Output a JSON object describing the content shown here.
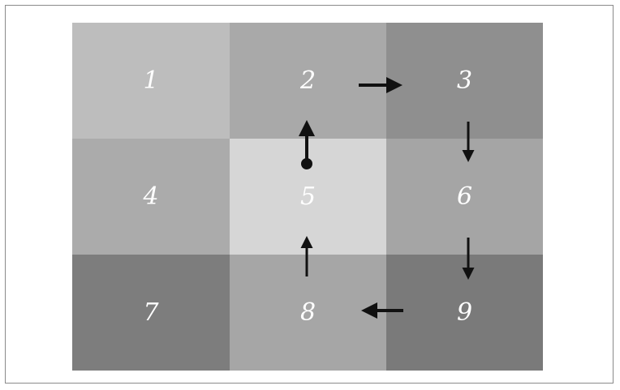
{
  "cells": [
    {
      "label": "1",
      "color": "#bdbdbd"
    },
    {
      "label": "2",
      "color": "#a9a9a9"
    },
    {
      "label": "3",
      "color": "#8f8f8f"
    },
    {
      "label": "4",
      "color": "#ababab"
    },
    {
      "label": "5",
      "color": "#d6d6d6"
    },
    {
      "label": "6",
      "color": "#a5a5a5"
    },
    {
      "label": "7",
      "color": "#7d7d7d"
    },
    {
      "label": "8",
      "color": "#a6a6a6"
    },
    {
      "label": "9",
      "color": "#7a7a7a"
    }
  ],
  "colors": {
    "frame_border": "#8a8a8a",
    "arrow": "#111111",
    "label": "#ffffff"
  },
  "arrows": [
    {
      "from": "5",
      "to": "2",
      "start_dot": true
    },
    {
      "from": "2",
      "to": "3"
    },
    {
      "from": "3",
      "to": "6"
    },
    {
      "from": "6",
      "to": "9"
    },
    {
      "from": "9",
      "to": "8"
    },
    {
      "from": "8",
      "to": "5"
    }
  ]
}
